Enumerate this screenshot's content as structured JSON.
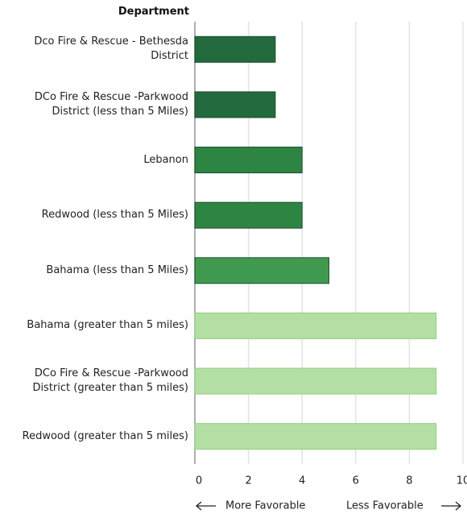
{
  "chart_data": {
    "type": "barh",
    "y_label": "Department",
    "categories": [
      "Dco Fire & Rescue - Bethesda District",
      "DCo Fire & Rescue -Parkwood District (less than 5 Miles)",
      "Lebanon",
      "Redwood (less than 5 Miles)",
      "Bahama (less than 5 Miles)",
      "Bahama (greater than 5 miles)",
      "DCo Fire & Rescue -Parkwood District (greater than 5 miles)",
      "Redwood (greater than 5 miles)"
    ],
    "values": [
      3,
      3,
      4,
      4,
      5,
      9,
      9,
      9
    ],
    "colors": [
      "#236a3e",
      "#236a3e",
      "#2d8443",
      "#2d8443",
      "#3f9a50",
      "#b3dfa5",
      "#b3dfa5",
      "#b3dfa5"
    ],
    "xlim": [
      0,
      10
    ],
    "xticks": [
      0,
      2,
      4,
      6,
      8,
      10
    ],
    "grid": true,
    "annotations": [
      "More Favorable",
      "Less Favorable"
    ]
  }
}
